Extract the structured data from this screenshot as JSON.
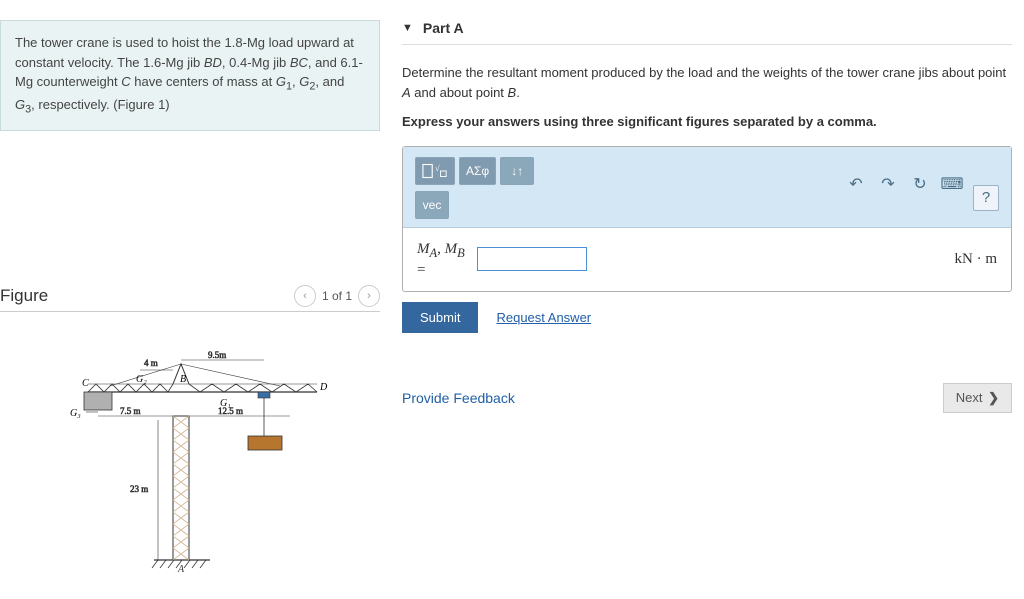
{
  "problem": {
    "text_html": "The tower crane is used to hoist the 1.8-Mg load upward at constant velocity. The 1.6-Mg jib <i>BD</i>, 0.4-Mg jib <i>BC</i>, and 6.1-Mg counterweight <i>C</i> have centers of mass at <i>G</i><sub>1</sub>, <i>G</i><sub>2</sub>, and <i>G</i><sub>3</sub>, respectively. (Figure 1)"
  },
  "figure": {
    "title": "Figure",
    "pager": "1 of 1",
    "dims": {
      "d1": "4 m",
      "d2": "9.5m",
      "d3": "7.5 m",
      "d4": "12.5 m",
      "d5": "23 m"
    },
    "labels": {
      "G1": "G₁",
      "G2": "G₂",
      "G3": "G₃",
      "A": "A",
      "B": "B",
      "C": "C",
      "D": "D"
    },
    "colors": {
      "crane": "#3b6ea5",
      "lattice": "#d4b896",
      "block": "#b6762e"
    }
  },
  "part": {
    "header_label": "Part A",
    "prompt_html": "Determine the resultant moment produced by the load and the weights of the tower crane jibs about point <i>A</i> and about point <i>B</i>.",
    "instruction": "Express your answers using three significant figures separated by a comma.",
    "toolbar": {
      "templates_label": "",
      "sigma_label": "ΑΣφ",
      "arrows_label": "↓↑",
      "vec_label": "vec",
      "help_label": "?"
    },
    "var_label_html": "M<sub>A</sub>, M<sub>B</sub>",
    "unit": "kN · m",
    "submit_label": "Submit",
    "request_label": "Request Answer"
  },
  "footer": {
    "feedback_label": "Provide Feedback",
    "next_label": "Next"
  }
}
